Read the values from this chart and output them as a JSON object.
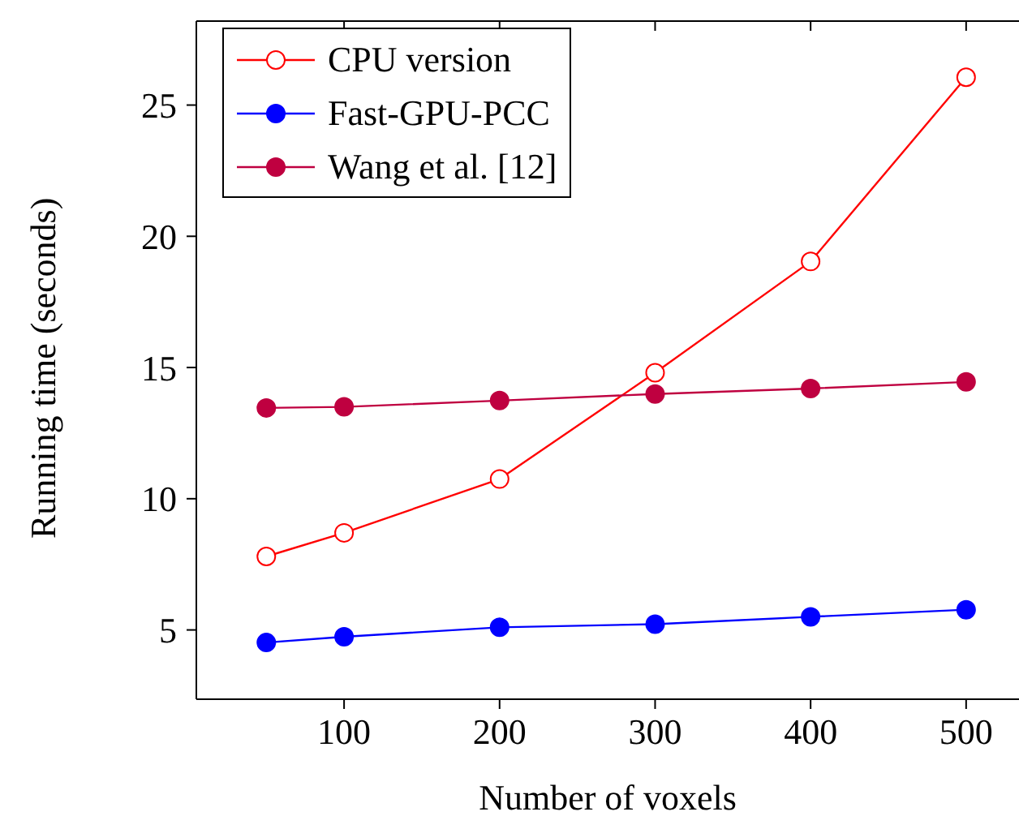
{
  "chart_data": {
    "type": "line",
    "xlabel": "Number of voxels",
    "ylabel": "Running time (seconds)",
    "x": [
      50,
      100,
      200,
      300,
      400,
      500
    ],
    "series": [
      {
        "name": "CPU version",
        "color": "#ff0000",
        "marker": "circle-open",
        "values": [
          7.8,
          8.7,
          10.75,
          14.8,
          19.04,
          26.06
        ]
      },
      {
        "name": "Fast-GPU-PCC",
        "color": "#0000ff",
        "values": [
          4.52,
          4.74,
          5.1,
          5.22,
          5.5,
          5.77
        ]
      },
      {
        "name": "Wang et al. [12]",
        "color": "#bf0040",
        "values": [
          13.46,
          13.5,
          13.74,
          13.99,
          14.2,
          14.45
        ]
      }
    ],
    "xlim": [
      5,
      534
    ],
    "xticks": [
      100,
      200,
      300,
      400,
      500
    ],
    "ylim": [
      2.36,
      28.2
    ],
    "yticks": [
      5,
      10,
      15,
      20,
      25
    ],
    "grid": false,
    "legend": "top left",
    "marker": "circle",
    "line_style": "solid"
  }
}
